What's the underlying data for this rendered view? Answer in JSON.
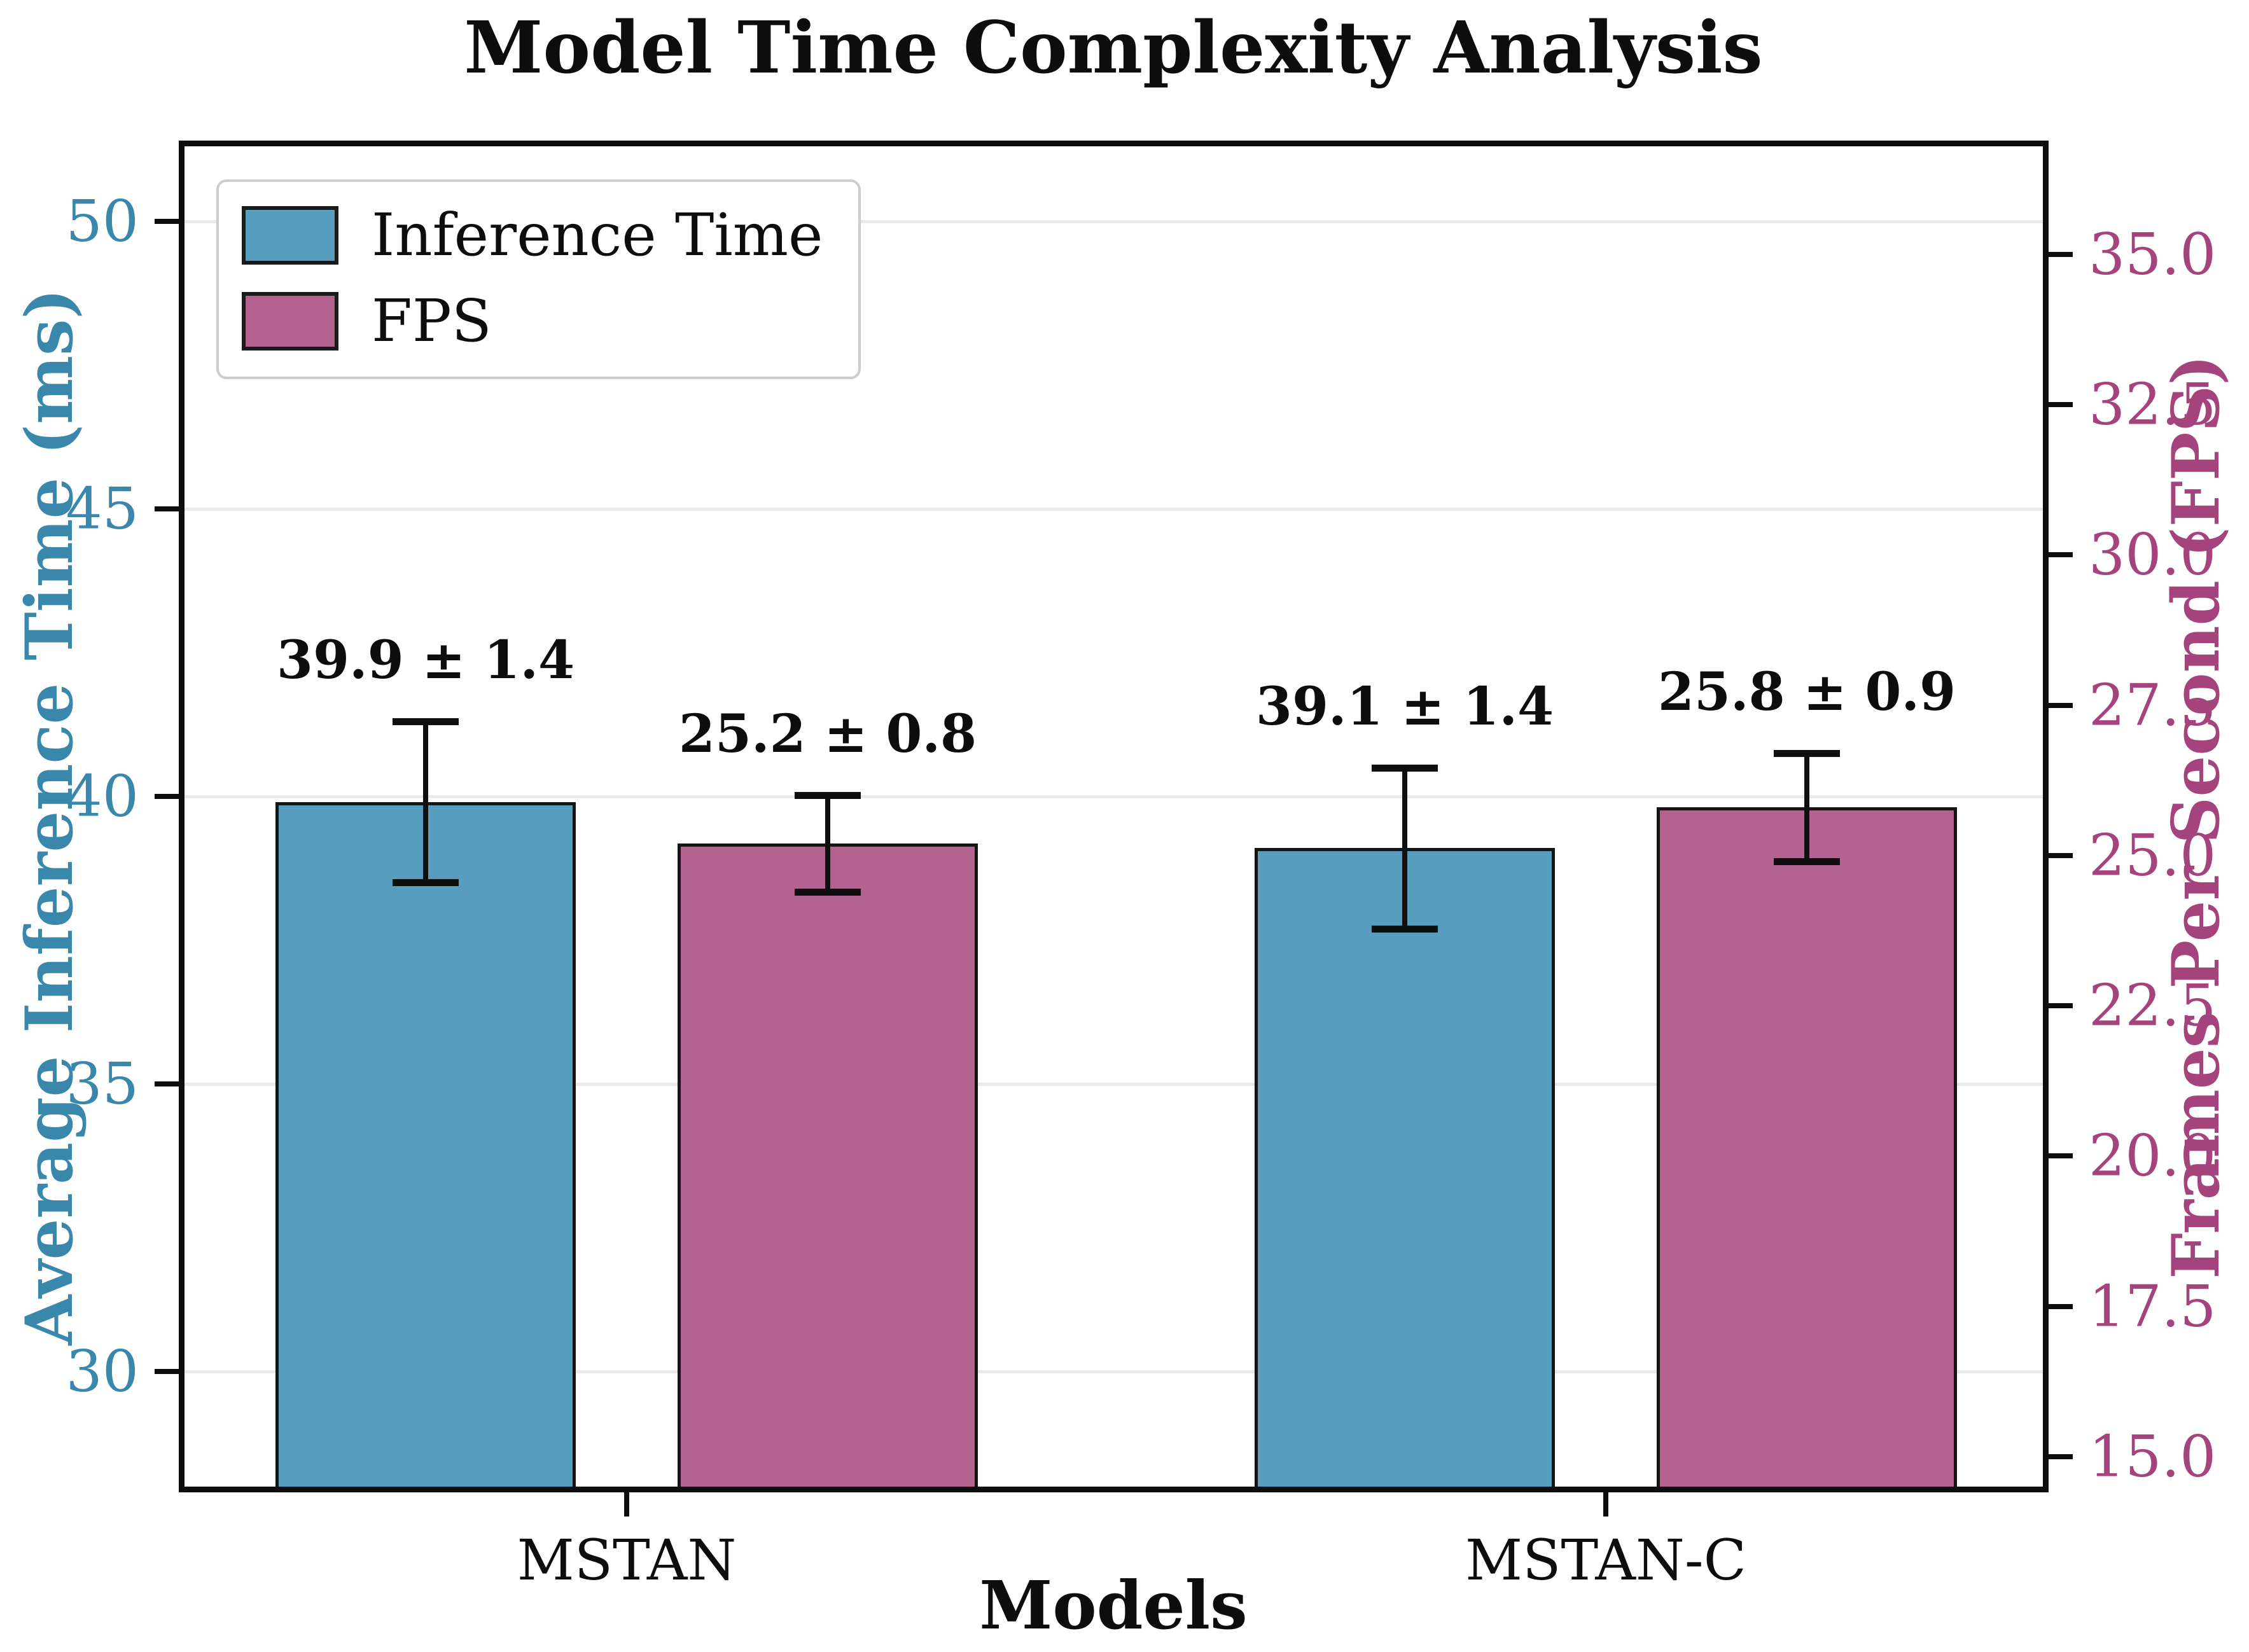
{
  "chart_data": {
    "type": "bar",
    "title": "Model Time Complexity Analysis",
    "xlabel": "Models",
    "categories": [
      "MSTAN",
      "MSTAN-C"
    ],
    "series": [
      {
        "name": "Inference Time",
        "axis": "left",
        "color": "#579DBE",
        "values": [
          39.9,
          39.1
        ],
        "errors": [
          1.4,
          1.4
        ],
        "labels": [
          "39.9 ± 1.4",
          "39.1 ± 1.4"
        ]
      },
      {
        "name": "FPS",
        "axis": "right",
        "color": "#B4638E",
        "values": [
          25.2,
          25.8
        ],
        "errors": [
          0.8,
          0.9
        ],
        "labels": [
          "25.2 ± 0.8",
          "25.8 ± 0.9"
        ]
      }
    ],
    "left_axis": {
      "label": "Average Inference Time (ms)",
      "color": "#3A87AC",
      "ticks": [
        50,
        45,
        40,
        35,
        30
      ],
      "tick_labels": [
        "50",
        "45",
        "40",
        "35",
        "30"
      ],
      "range": [
        28.0,
        51.3
      ]
    },
    "right_axis": {
      "label": "Frames Per Second (FPS)",
      "color": "#A5437D",
      "ticks": [
        35.0,
        32.5,
        30.0,
        27.5,
        25.0,
        22.5,
        20.0,
        17.5,
        15.0
      ],
      "tick_labels": [
        "35.0",
        "32.5",
        "30.0",
        "27.5",
        "25.0",
        "22.5",
        "20.0",
        "17.5",
        "15.0"
      ],
      "range": [
        14.5,
        36.8
      ]
    },
    "legend": {
      "position": "upper left",
      "entries": [
        "Inference Time",
        "FPS"
      ]
    },
    "grid": {
      "horizontal": true,
      "color": "#E9E9E9"
    }
  }
}
